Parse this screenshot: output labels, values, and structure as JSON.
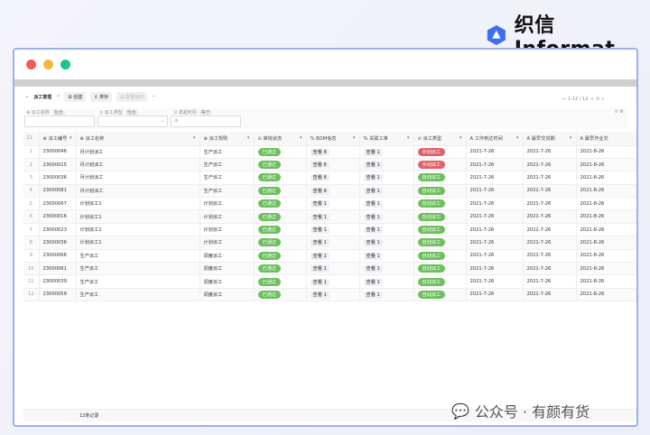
{
  "brand": {
    "name": "织信 Informat",
    "color": "#3d6ff0"
  },
  "window": {
    "dots": [
      "#f35b5b",
      "#f5b73e",
      "#1fc48d"
    ]
  },
  "toolbar": {
    "title": "派工管理",
    "create": "创建",
    "sort": "排序",
    "batch": "批量操作",
    "more": "···"
  },
  "pager": {
    "text": "1-12 / 12"
  },
  "filters": [
    {
      "label": "派工名称",
      "tag": "包含"
    },
    {
      "label": "派工类型",
      "tag": "包含"
    },
    {
      "label": "发起时间",
      "tag": "等于"
    }
  ],
  "columns": [
    "派工编号",
    "派工名称",
    "派工规则",
    "审批状态",
    "BOM信息",
    "关联工单",
    "派工类型",
    "工作到达时间",
    "最早交货期",
    "最早作业交"
  ],
  "rows": [
    [
      "1",
      "23000046",
      "月计划派工",
      "生产派工",
      "已通过",
      "查看 8",
      "查看 1",
      "手动派工",
      "2021-7-26",
      "2021-7-26",
      "2021-8-26"
    ],
    [
      "2",
      "23000015",
      "月计划派工",
      "生产派工",
      "已通过",
      "查看 8",
      "查看 1",
      "手动派工",
      "2021-7-26",
      "2021-7-26",
      "2021-8-26"
    ],
    [
      "3",
      "23000036",
      "月计划派工",
      "生产派工",
      "已通过",
      "查看 8",
      "查看 1",
      "自动派工",
      "2021-7-26",
      "2021-7-26",
      "2021-8-26"
    ],
    [
      "4",
      "23000081",
      "月计划派工",
      "生产派工",
      "已通过",
      "查看 8",
      "查看 1",
      "自动派工",
      "2021-7-26",
      "2021-7-26",
      "2021-8-26"
    ],
    [
      "5",
      "23000067",
      "计划派工1",
      "计划派工",
      "已通过",
      "查看 1",
      "查看 1",
      "自动派工",
      "2021-7-26",
      "2021-7-26",
      "2021-8-26"
    ],
    [
      "6",
      "23000016",
      "计划派工1",
      "计划派工",
      "已通过",
      "查看 1",
      "查看 1",
      "自动派工",
      "2021-7-26",
      "2021-7-26",
      "2021-8-26"
    ],
    [
      "7",
      "23000023",
      "计划派工1",
      "计划派工",
      "已通过",
      "查看 1",
      "查看 1",
      "自动派工",
      "2021-7-26",
      "2021-7-26",
      "2021-8-26"
    ],
    [
      "8",
      "23000036",
      "计划派工1",
      "计划派工",
      "已通过",
      "查看 1",
      "查看 1",
      "自动派工",
      "2021-7-26",
      "2021-7-26",
      "2021-8-26"
    ],
    [
      "9",
      "23000066",
      "生产派工",
      "调度派工",
      "已通过",
      "查看 1",
      "查看 1",
      "自动派工",
      "2021-7-26",
      "2021-7-26",
      "2021-8-26"
    ],
    [
      "10",
      "23000061",
      "生产派工",
      "调度派工",
      "已通过",
      "查看 1",
      "查看 1",
      "自动派工",
      "2021-7-26",
      "2021-7-26",
      "2021-8-26"
    ],
    [
      "11",
      "23000039",
      "生产派工",
      "调度派工",
      "已通过",
      "查看 1",
      "查看 1",
      "自动派工",
      "2021-7-26",
      "2021-7-26",
      "2021-8-26"
    ],
    [
      "12",
      "23000059",
      "生产派工",
      "调度派工",
      "已通过",
      "查看 1",
      "查看 1",
      "自动派工",
      "2021-7-26",
      "2021-7-26",
      "2021-8-26"
    ]
  ],
  "footer": {
    "count": "12条记录"
  },
  "watermark": "公众号 · 有颜有货"
}
